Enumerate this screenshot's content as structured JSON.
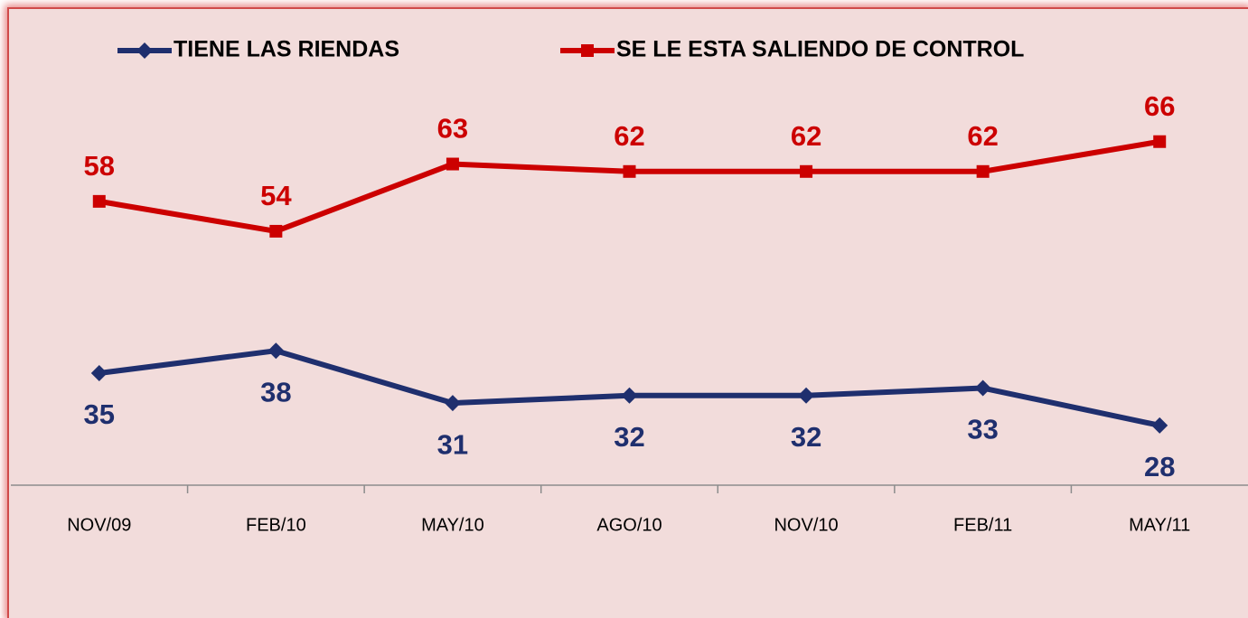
{
  "chart_data": {
    "type": "line",
    "categories": [
      "NOV/09",
      "FEB/10",
      "MAY/10",
      "AGO/10",
      "NOV/10",
      "FEB/11",
      "MAY/11"
    ],
    "series": [
      {
        "name": "TIENE LAS RIENDAS",
        "color": "#1f2f6e",
        "marker": "diamond",
        "label_position": "below",
        "values": [
          35,
          38,
          31,
          32,
          32,
          33,
          28
        ]
      },
      {
        "name": "SE LE ESTA SALIENDO DE CONTROL",
        "color": "#cc0000",
        "marker": "square",
        "label_position": "above",
        "values": [
          58,
          54,
          63,
          62,
          62,
          62,
          66
        ]
      }
    ],
    "ylim": [
      20,
      80
    ],
    "legend": "top",
    "grid": false
  }
}
